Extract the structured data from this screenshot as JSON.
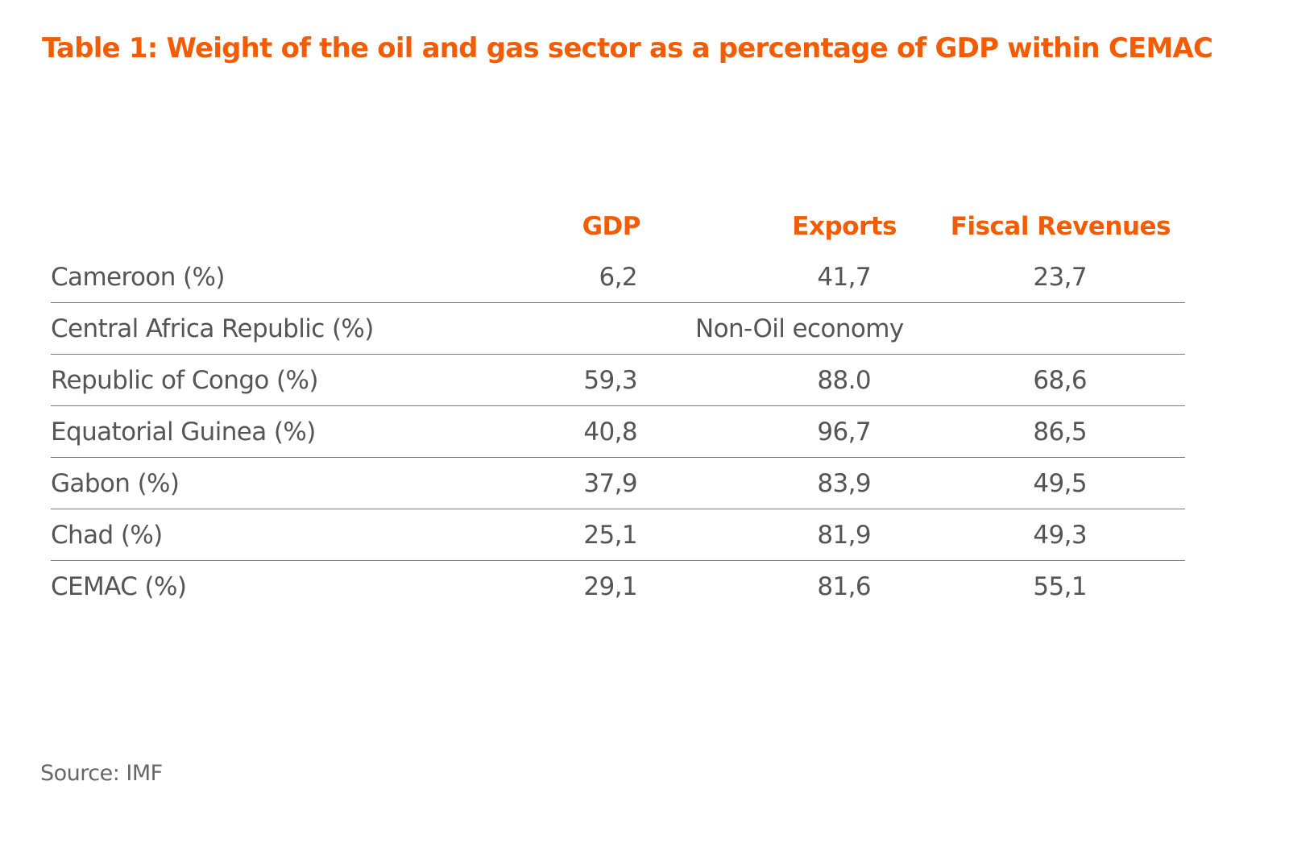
{
  "colors": {
    "accent": "#f25c05",
    "text": "#555555",
    "rule": "#7a7a7a"
  },
  "title": "Table 1: Weight of the oil and gas sector as a percentage of GDP within CEMAC",
  "source": "Source: IMF",
  "chart_data": {
    "type": "table",
    "title": "Table 1: Weight of the oil and gas sector as a percentage of GDP within CEMAC",
    "columns": [
      "GDP",
      "Exports",
      "Fiscal Revenues"
    ],
    "rows": [
      {
        "label": "Cameroon (%)",
        "gdp": "6,2",
        "exports": "41,7",
        "fiscal": "23,7"
      },
      {
        "label": "Central Africa Republic (%)",
        "note": "Non-Oil economy"
      },
      {
        "label": "Republic of Congo (%)",
        "gdp": "59,3",
        "exports": "88.0",
        "fiscal": "68,6"
      },
      {
        "label": "Equatorial Guinea (%)",
        "gdp": "40,8",
        "exports": "96,7",
        "fiscal": "86,5"
      },
      {
        "label": "Gabon (%)",
        "gdp": "37,9",
        "exports": "83,9",
        "fiscal": "49,5"
      },
      {
        "label": "Chad (%)",
        "gdp": "25,1",
        "exports": "81,9",
        "fiscal": "49,3"
      },
      {
        "label": "CEMAC (%)",
        "gdp": "29,1",
        "exports": "81,6",
        "fiscal": "55,1"
      }
    ],
    "source": "Source: IMF"
  }
}
